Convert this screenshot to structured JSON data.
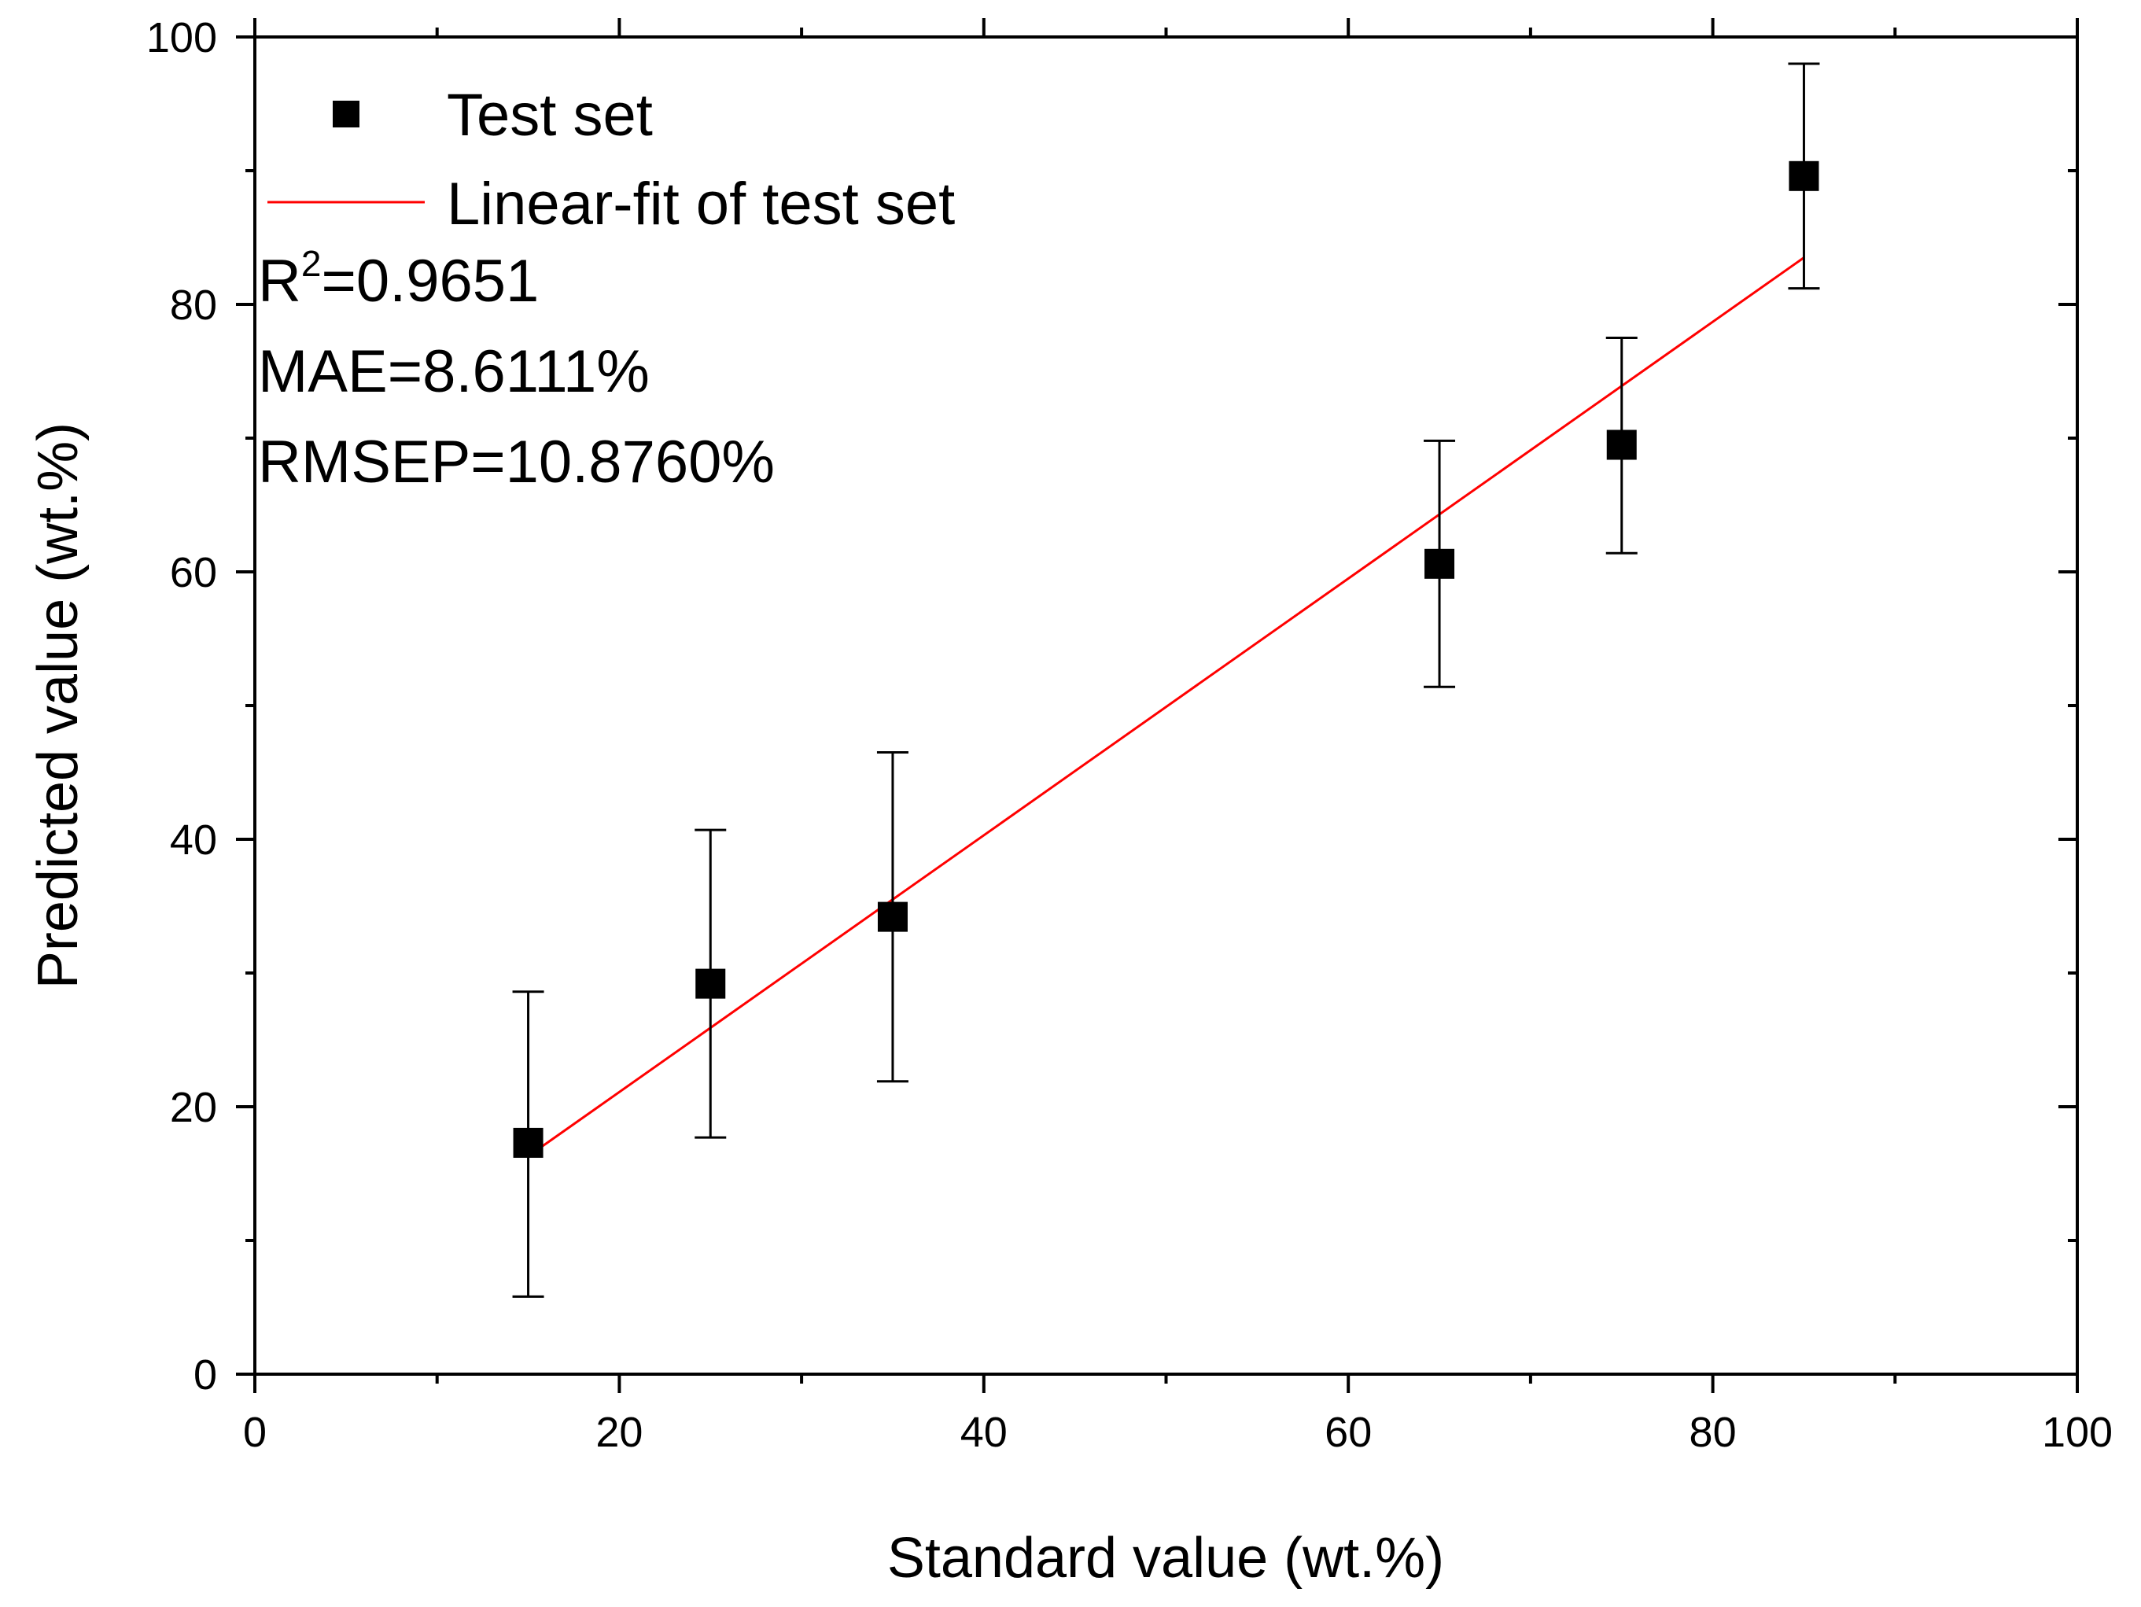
{
  "chart_data": {
    "type": "scatter",
    "title": "",
    "xlabel": "Standard value (wt.%)",
    "ylabel": "Predicted value (wt.%)",
    "xlim": [
      0,
      100
    ],
    "ylim": [
      0,
      100
    ],
    "x_ticks": [
      0,
      20,
      40,
      60,
      80,
      100
    ],
    "y_ticks": [
      0,
      20,
      40,
      60,
      80,
      100
    ],
    "grid": false,
    "legend_position": "top-left",
    "series": [
      {
        "name": "Test set",
        "kind": "scatter",
        "marker": "square",
        "color": "#000000",
        "x": [
          15,
          25,
          35,
          65,
          75,
          85
        ],
        "y": [
          17.3,
          29.2,
          34.2,
          60.6,
          69.5,
          89.6
        ],
        "err_low": [
          5.8,
          17.7,
          21.9,
          51.4,
          61.4,
          81.2
        ],
        "err_high": [
          28.6,
          40.7,
          46.5,
          69.8,
          77.5,
          98.0
        ]
      },
      {
        "name": "Linear-fit of test set",
        "kind": "line",
        "color": "#ff0000",
        "x": [
          15,
          85
        ],
        "y": [
          16.3,
          83.5
        ]
      }
    ],
    "stats": {
      "r2_prefix": "R",
      "r2_sup": "2",
      "r2_value": "=0.9651",
      "mae": "MAE=8.6111%",
      "rmsep": "RMSEP=10.8760%"
    }
  }
}
